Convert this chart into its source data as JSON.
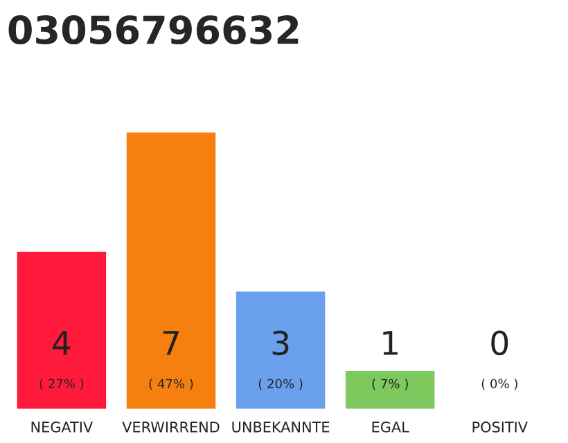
{
  "chart_data": {
    "type": "bar",
    "title": "03056796632",
    "categories": [
      "NEGATIV",
      "VERWIRREND",
      "UNBEKANNTE",
      "EGAL",
      "POSITIV"
    ],
    "values": [
      4,
      7,
      3,
      1,
      0
    ],
    "colors": [
      "#ff1a3c",
      "#f5800f",
      "#6aa0ee",
      "#7dc95e",
      null
    ],
    "value_labels": [
      "4\n( 27% )",
      "7\n( 47% )",
      "3\n( 20% )",
      "1\n( 7% )",
      "0\n( 0% )"
    ],
    "ylim": [
      0,
      7
    ],
    "tick_labels": "x",
    "grid": false,
    "legend": false
  }
}
